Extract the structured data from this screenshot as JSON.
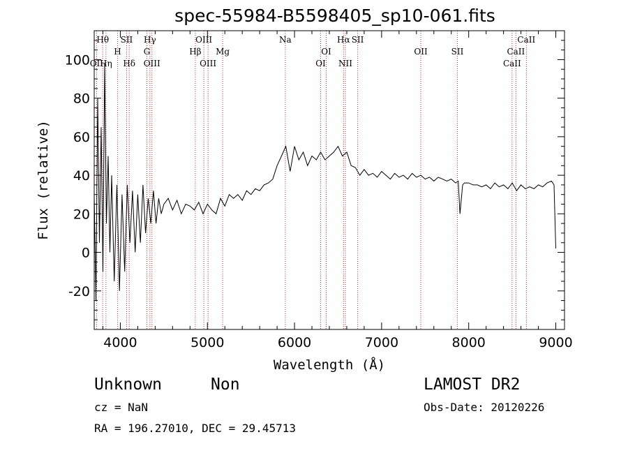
{
  "chart_data": {
    "type": "line",
    "title": "spec-55984-B5598405_sp10-061.fits",
    "xlabel": "Wavelength (Å)",
    "ylabel": "Flux (relative)",
    "xlim": [
      3700,
      9100
    ],
    "ylim": [
      -40,
      115
    ],
    "xticks": [
      4000,
      5000,
      6000,
      7000,
      8000,
      9000
    ],
    "yticks": [
      -20,
      0,
      20,
      40,
      60,
      80,
      100
    ],
    "grid": false,
    "series": [
      {
        "x": [
          3700,
          3720,
          3740,
          3760,
          3780,
          3800,
          3820,
          3840,
          3860,
          3880,
          3900,
          3930,
          3960,
          3990,
          4020,
          4050,
          4080,
          4110,
          4140,
          4170,
          4200,
          4230,
          4260,
          4290,
          4320,
          4350,
          4380,
          4410,
          4440,
          4470,
          4500,
          4550,
          4600,
          4650,
          4700,
          4750,
          4800,
          4850,
          4900,
          4950,
          5000,
          5050,
          5100,
          5150,
          5200,
          5250,
          5300,
          5350,
          5400,
          5450,
          5500,
          5550,
          5600,
          5650,
          5700,
          5750,
          5800,
          5850,
          5900,
          5950,
          6000,
          6050,
          6100,
          6150,
          6200,
          6250,
          6300,
          6350,
          6400,
          6450,
          6500,
          6550,
          6600,
          6650,
          6700,
          6750,
          6800,
          6850,
          6900,
          6950,
          7000,
          7050,
          7100,
          7150,
          7200,
          7250,
          7300,
          7350,
          7400,
          7450,
          7500,
          7550,
          7600,
          7650,
          7700,
          7750,
          7800,
          7850,
          7880,
          7900,
          7930,
          7950,
          8000,
          8050,
          8100,
          8150,
          8200,
          8250,
          8300,
          8350,
          8400,
          8450,
          8500,
          8550,
          8600,
          8650,
          8700,
          8750,
          8800,
          8850,
          8900,
          8950,
          8980,
          9000
        ],
        "y": [
          30,
          -25,
          80,
          5,
          65,
          -10,
          98,
          15,
          50,
          0,
          40,
          -15,
          35,
          -20,
          30,
          -10,
          35,
          5,
          32,
          0,
          30,
          5,
          35,
          10,
          28,
          15,
          32,
          15,
          28,
          20,
          25,
          28,
          22,
          27,
          20,
          25,
          24,
          22,
          26,
          20,
          25,
          22,
          20,
          28,
          24,
          30,
          28,
          30,
          27,
          32,
          30,
          33,
          32,
          35,
          36,
          38,
          45,
          50,
          55,
          42,
          55,
          48,
          52,
          45,
          50,
          48,
          52,
          48,
          50,
          52,
          55,
          50,
          52,
          45,
          44,
          40,
          43,
          40,
          41,
          39,
          42,
          40,
          38,
          41,
          39,
          40,
          38,
          41,
          39,
          40,
          38,
          39,
          37,
          39,
          38,
          37,
          38,
          36,
          37,
          20,
          35,
          36,
          36,
          35,
          35,
          34,
          35,
          33,
          36,
          34,
          35,
          33,
          36,
          32,
          35,
          33,
          34,
          33,
          35,
          34,
          36,
          37,
          35,
          2
        ]
      }
    ],
    "lines": [
      {
        "label": "Hθ",
        "x": 3798,
        "row": 0,
        "sub": ""
      },
      {
        "label": "OII",
        "x": 3727,
        "row": 2,
        "sub": ""
      },
      {
        "label": "Hη",
        "x": 3835,
        "row": 2,
        "sub": ""
      },
      {
        "label": "H",
        "x": 3968,
        "row": 1,
        "sub": ""
      },
      {
        "label": "SII",
        "x": 4072,
        "row": 0,
        "sub": ""
      },
      {
        "label": "Hδ",
        "x": 4102,
        "row": 2,
        "sub": ""
      },
      {
        "label": "Hγ",
        "x": 4340,
        "row": 0,
        "sub": ""
      },
      {
        "label": "G",
        "x": 4305,
        "row": 1,
        "sub": ""
      },
      {
        "label": "OIII",
        "x": 4363,
        "row": 2,
        "sub": ""
      },
      {
        "label": "OIII",
        "x": 4959,
        "row": 0,
        "sub": ""
      },
      {
        "label": "Hβ",
        "x": 4861,
        "row": 1,
        "sub": ""
      },
      {
        "label": "OIII",
        "x": 5007,
        "row": 2,
        "sub": ""
      },
      {
        "label": "Mg",
        "x": 5175,
        "row": 1,
        "sub": ""
      },
      {
        "label": "Na",
        "x": 5894,
        "row": 0,
        "sub": ""
      },
      {
        "label": "OI",
        "x": 6364,
        "row": 1,
        "sub": ""
      },
      {
        "label": "OI",
        "x": 6300,
        "row": 2,
        "sub": ""
      },
      {
        "label": "Hα",
        "x": 6563,
        "row": 0,
        "sub": ""
      },
      {
        "label": "SII",
        "x": 6725,
        "row": 0,
        "sub": ""
      },
      {
        "label": "NII",
        "x": 6584,
        "row": 2,
        "sub": ""
      },
      {
        "label": "OII",
        "x": 7450,
        "row": 1,
        "sub": ""
      },
      {
        "label": "SII",
        "x": 7870,
        "row": 1,
        "sub": ""
      },
      {
        "label": "CaII",
        "x": 8662,
        "row": 0,
        "sub": ""
      },
      {
        "label": "CaII",
        "x": 8542,
        "row": 1,
        "sub": ""
      },
      {
        "label": "CaII",
        "x": 8498,
        "row": 2,
        "sub": ""
      }
    ]
  },
  "info": {
    "class": "Unknown",
    "subclass": "Non",
    "cz": "cz = NaN",
    "radec": "RA = 196.27010, DEC =  29.45713",
    "survey": "LAMOST DR2",
    "obsdate": "Obs-Date: 20120226"
  }
}
